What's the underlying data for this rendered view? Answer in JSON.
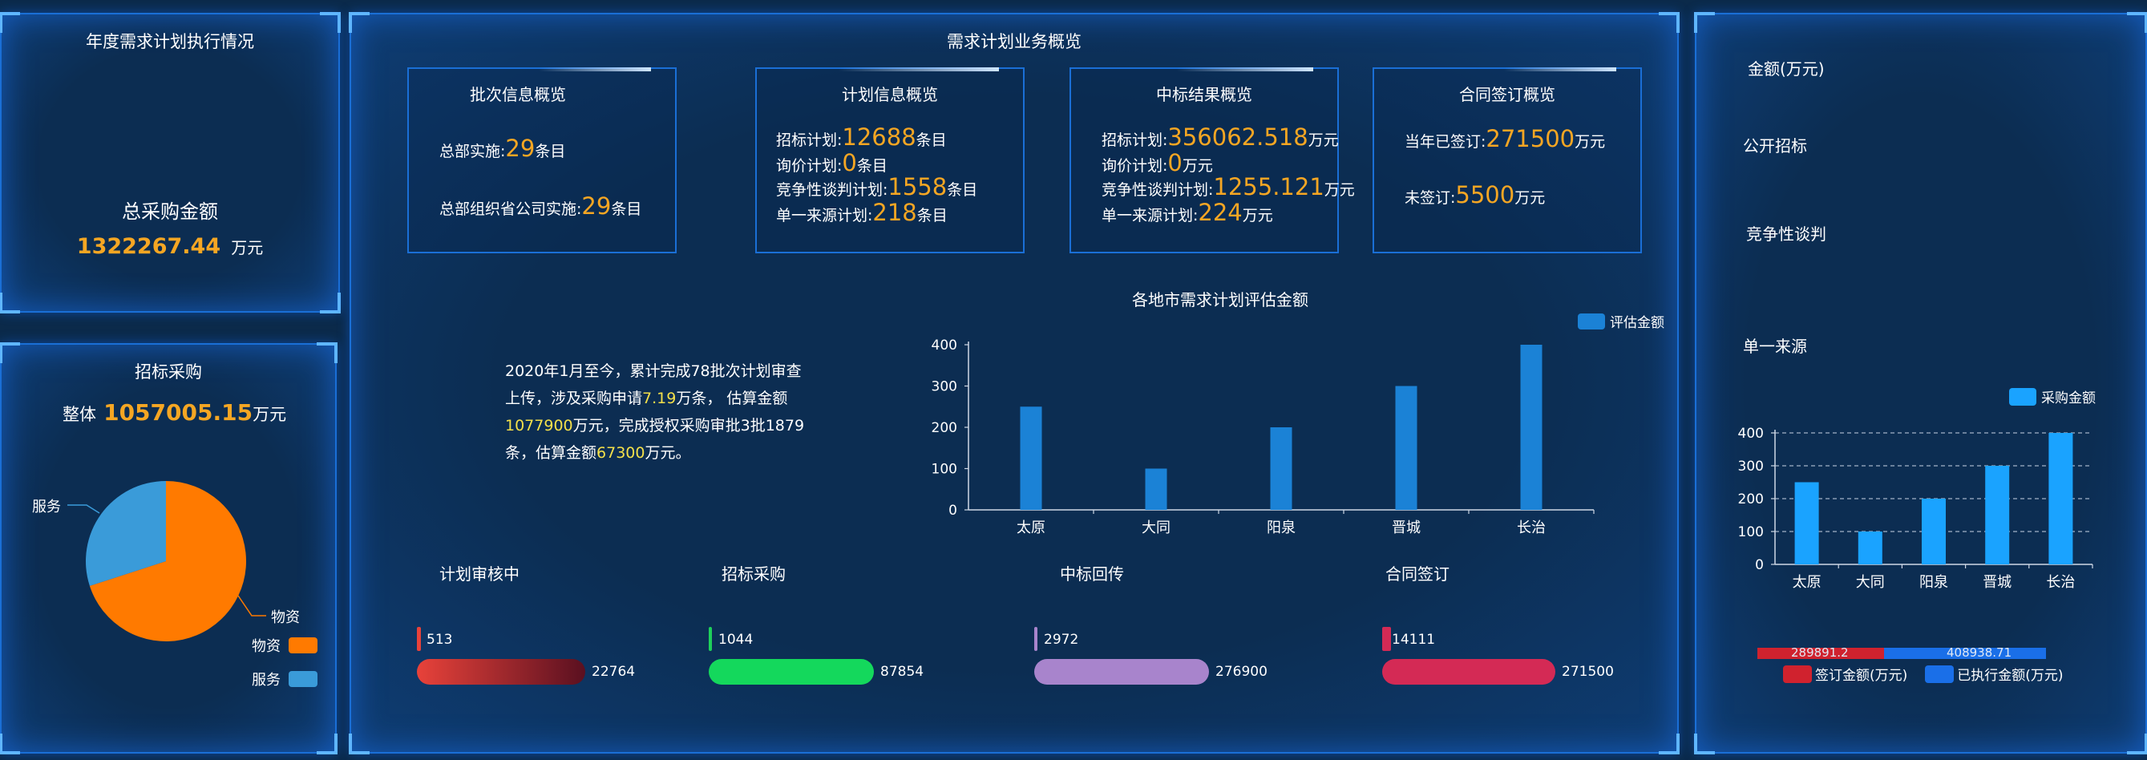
{
  "left_top": {
    "title": "年度需求计划执行情况",
    "total_label": "总采购金额",
    "total_value": "1322267.44",
    "total_unit": "万元"
  },
  "left_bottom": {
    "title": "招标采购",
    "overall_prefix": "整体",
    "overall_value": "1057005.15",
    "overall_unit": "万元",
    "pie": {
      "slices": [
        {
          "name": "物资",
          "value": 70,
          "color": "#ff7a00"
        },
        {
          "name": "服务",
          "value": 30,
          "color": "#3a9bd9"
        }
      ]
    },
    "legend": [
      {
        "label": "物资",
        "color": "#ff7a00"
      },
      {
        "label": "服务",
        "color": "#3a9bd9"
      }
    ],
    "callouts": {
      "wuzi": "物资",
      "fuwu": "服务"
    }
  },
  "center": {
    "title": "需求计划业务概览",
    "boxes": {
      "batch": {
        "title": "批次信息概览",
        "l1_label": "总部实施:",
        "l1_value": "29",
        "l1_unit": "条目",
        "l2_label": "总部组织省公司实施:",
        "l2_value": "29",
        "l2_unit": "条目"
      },
      "plan": {
        "title": "计划信息概览",
        "l1_label": "招标计划:",
        "l1_value": "12688",
        "l1_unit": "条目",
        "l2_label": "询价计划:",
        "l2_value": "0",
        "l2_unit": "条目",
        "l3_label": "竞争性谈判计划:",
        "l3_value": "1558",
        "l3_unit": "条目",
        "l4_label": "单一来源计划:",
        "l4_value": "218",
        "l4_unit": "条目"
      },
      "result": {
        "title": "中标结果概览",
        "l1_label": "招标计划:",
        "l1_value": "356062.518",
        "l1_unit": "万元",
        "l2_label": "询价计划:",
        "l2_value": "0",
        "l2_unit": "万元",
        "l3_label": "竞争性谈判计划:",
        "l3_value": "1255.121",
        "l3_unit": "万元",
        "l4_label": "单一来源计划:",
        "l4_value": "224",
        "l4_unit": "万元"
      },
      "contract": {
        "title": "合同签订概览",
        "l1_label": "当年已签订:",
        "l1_value": "271500",
        "l1_unit": "万元",
        "l2_label": "未签订:",
        "l2_value": "5500",
        "l2_unit": "万元"
      }
    },
    "summary": {
      "t1": "2020年1月至今，累计完成78批次计划审查上传，涉及采购申请",
      "v1": "7.19",
      "t2": "万条， 估算金额",
      "v2": "1077900",
      "t3": "万元，完成授权采购审批3批1879条，估算金额",
      "v3": "67300",
      "t4": "万元。"
    },
    "progress": [
      {
        "title": "计划审核中",
        "small": "513",
        "large": "22764",
        "ratio": 0.0225,
        "color": "#e8423a",
        "grad": "linear-gradient(90deg,#e8423a,#5a1020)"
      },
      {
        "title": "招标采购",
        "small": "1044",
        "large": "87854",
        "ratio": 0.0119,
        "color": "#1ecf5a",
        "grad": "#14d85c"
      },
      {
        "title": "中标回传",
        "small": "2972",
        "large": "276900",
        "ratio": 0.0107,
        "color": "#a884cc",
        "grad": "#a884cc"
      },
      {
        "title": "合同签订",
        "small": "14111",
        "large": "271500",
        "ratio": 0.052,
        "color": "#d42a55",
        "grad": "#d42a55"
      }
    ]
  },
  "chart_data": [
    {
      "type": "bar",
      "title": "各地市需求计划评估金额",
      "categories": [
        "太原",
        "大同",
        "阳泉",
        "晋城",
        "长治"
      ],
      "series": [
        {
          "name": "评估金额",
          "values": [
            250,
            100,
            200,
            300,
            400
          ]
        }
      ],
      "ylim": [
        0,
        400
      ],
      "yticks": [
        0,
        100,
        200,
        300,
        400
      ],
      "grid": false,
      "legend": "top-right",
      "color": "#1b82d6"
    },
    {
      "type": "bar",
      "categories": [
        "太原",
        "大同",
        "阳泉",
        "晋城",
        "长治"
      ],
      "series": [
        {
          "name": "采购金额",
          "values": [
            250,
            100,
            200,
            300,
            400
          ]
        }
      ],
      "ylim": [
        0,
        400
      ],
      "yticks": [
        0,
        100,
        200,
        300,
        400
      ],
      "grid": true,
      "legend": "top-right",
      "color": "#1aa3ff"
    }
  ],
  "right": {
    "unit_label": "金额(万元)",
    "cat1": "公开招标",
    "cat2": "竞争性谈判",
    "cat3": "单一来源",
    "bottom_bar": {
      "value1": "289891.2",
      "value2": "408938.71",
      "legend1": "签订金额(万元)",
      "legend2": "已执行金额(万元)",
      "color1": "#d0222e",
      "color2": "#1a6fe8"
    }
  }
}
